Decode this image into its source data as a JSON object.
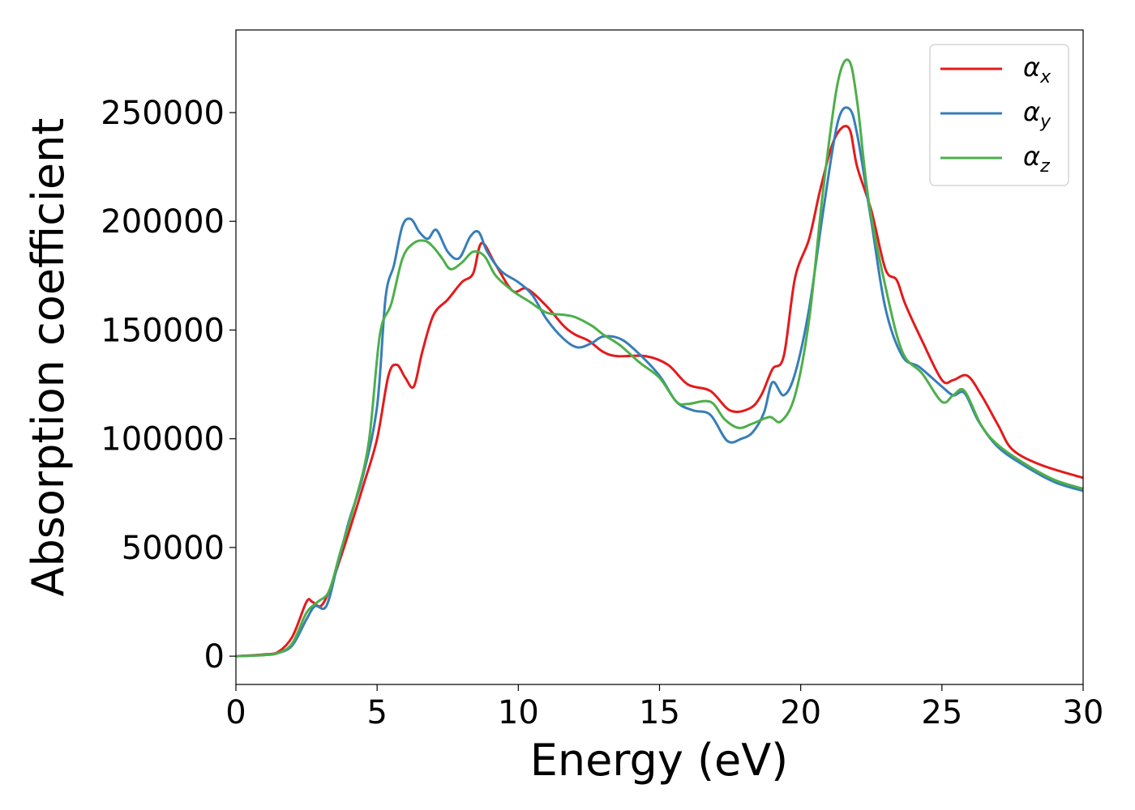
{
  "chart_data": {
    "type": "line",
    "title": "",
    "xlabel": "Energy (eV)",
    "ylabel": "Absorption coefficient",
    "xlim": [
      0,
      30
    ],
    "ylim": [
      -13000,
      288000
    ],
    "xticks": [
      0,
      5,
      10,
      15,
      20,
      25,
      30
    ],
    "xtick_labels": [
      "0",
      "5",
      "10",
      "15",
      "20",
      "25",
      "30"
    ],
    "yticks": [
      0,
      50000,
      100000,
      150000,
      200000,
      250000
    ],
    "ytick_labels": [
      "0",
      "50000",
      "100000",
      "150000",
      "200000",
      "250000"
    ],
    "grid": false,
    "legend_position": "top-right",
    "series": [
      {
        "name": "αx",
        "symbol": "α",
        "subscript": "x",
        "color": "#e41a1c",
        "x": [
          0,
          1.0,
          1.5,
          2.0,
          2.5,
          2.7,
          3.0,
          3.3,
          3.7,
          4.0,
          4.5,
          5.0,
          5.4,
          5.7,
          6.0,
          6.3,
          6.6,
          7.0,
          7.5,
          8.0,
          8.4,
          8.7,
          9.2,
          9.8,
          10.3,
          11.0,
          11.6,
          12.0,
          12.5,
          13.0,
          13.5,
          14.5,
          15.3,
          16.0,
          16.8,
          17.5,
          18.2,
          18.6,
          19.0,
          19.4,
          19.8,
          20.3,
          20.7,
          21.2,
          21.7,
          22.0,
          22.5,
          23.0,
          23.4,
          23.7,
          24.3,
          25.0,
          25.4,
          25.9,
          26.4,
          27.0,
          27.5,
          28.5,
          30.0
        ],
        "y": [
          0,
          800,
          2000,
          9000,
          25000,
          25000,
          23000,
          30000,
          45000,
          57000,
          78000,
          100000,
          129000,
          134000,
          128000,
          124000,
          140000,
          157000,
          164000,
          172000,
          176000,
          190000,
          180000,
          168000,
          169000,
          161000,
          152000,
          148000,
          145000,
          140000,
          138000,
          138000,
          134000,
          125000,
          122000,
          113000,
          114000,
          120000,
          132000,
          138000,
          174000,
          192000,
          215000,
          238000,
          243000,
          225000,
          205000,
          178000,
          173000,
          162000,
          145000,
          127000,
          127000,
          129000,
          120000,
          106000,
          95000,
          88000,
          82000
        ]
      },
      {
        "name": "αy",
        "symbol": "α",
        "subscript": "y",
        "color": "#377eb8",
        "x": [
          0,
          1.0,
          1.5,
          2.0,
          2.5,
          2.8,
          3.2,
          3.6,
          4.0,
          4.5,
          5.0,
          5.3,
          5.6,
          5.9,
          6.2,
          6.5,
          6.8,
          7.1,
          7.5,
          7.9,
          8.3,
          8.6,
          8.9,
          9.4,
          10.0,
          10.5,
          11.0,
          11.6,
          12.1,
          12.6,
          13.0,
          13.6,
          14.2,
          15.0,
          15.6,
          16.2,
          16.8,
          17.4,
          17.9,
          18.3,
          18.7,
          19.0,
          19.4,
          19.8,
          20.3,
          20.8,
          21.3,
          21.7,
          22.0,
          22.5,
          23.0,
          23.6,
          24.2,
          25.0,
          25.4,
          25.8,
          26.3,
          27.0,
          28.0,
          29.0,
          30.0
        ],
        "y": [
          0,
          500,
          1500,
          5000,
          17000,
          23000,
          23000,
          42000,
          62000,
          83000,
          115000,
          165000,
          180000,
          198000,
          201000,
          195000,
          192000,
          196000,
          186000,
          183000,
          193000,
          195000,
          186000,
          177000,
          172000,
          166000,
          155000,
          146000,
          142000,
          144000,
          147000,
          146000,
          140000,
          129000,
          117000,
          113000,
          111000,
          99000,
          100000,
          103000,
          112000,
          126000,
          120000,
          130000,
          160000,
          205000,
          245000,
          252000,
          240000,
          200000,
          160000,
          138000,
          133000,
          124000,
          120000,
          121000,
          108000,
          96000,
          87000,
          80000,
          76000
        ]
      },
      {
        "name": "αz",
        "symbol": "α",
        "subscript": "z",
        "color": "#4daf4a",
        "x": [
          0,
          1.0,
          1.5,
          2.0,
          2.5,
          2.9,
          3.3,
          3.7,
          4.2,
          4.7,
          5.1,
          5.5,
          5.9,
          6.3,
          6.7,
          7.0,
          7.3,
          7.6,
          8.0,
          8.4,
          8.8,
          9.2,
          9.8,
          10.4,
          11.0,
          11.6,
          12.0,
          12.6,
          13.0,
          13.6,
          14.3,
          15.0,
          15.6,
          16.0,
          16.8,
          17.3,
          17.8,
          18.3,
          18.9,
          19.3,
          19.8,
          20.3,
          20.8,
          21.3,
          21.7,
          22.0,
          22.4,
          23.0,
          23.6,
          24.3,
          25.0,
          25.4,
          25.8,
          26.4,
          27.0,
          28.0,
          29.0,
          30.0
        ],
        "y": [
          0,
          500,
          1500,
          6000,
          20000,
          25000,
          30000,
          48000,
          70000,
          98000,
          148000,
          162000,
          183000,
          190000,
          191000,
          188000,
          183000,
          178000,
          181000,
          186000,
          184000,
          175000,
          168000,
          163000,
          158000,
          157000,
          156000,
          152000,
          148000,
          143000,
          135000,
          128000,
          117000,
          116000,
          117000,
          109000,
          105000,
          107000,
          110000,
          108000,
          120000,
          155000,
          215000,
          263000,
          274000,
          255000,
          210000,
          170000,
          140000,
          130000,
          117000,
          120000,
          122000,
          106000,
          97000,
          88000,
          81000,
          77000
        ]
      }
    ]
  }
}
